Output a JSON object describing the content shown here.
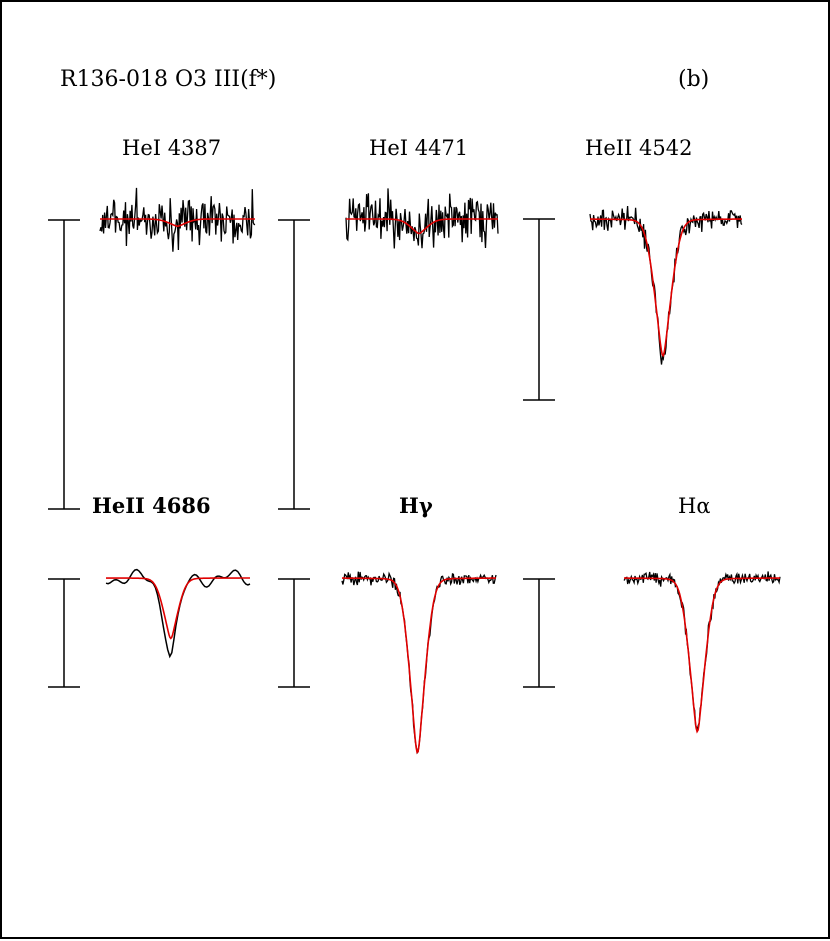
{
  "figure": {
    "star_label": "R136-018 O3 III(f*)",
    "panel_letter": "(b)"
  },
  "colors": {
    "observed": "#000000",
    "model": "#e00000",
    "frame": "#000000"
  },
  "chart_data": [
    {
      "type": "line",
      "title": "HeI 4387",
      "bold": false,
      "noise": "high",
      "smooth": false,
      "series": [
        {
          "role": "observed",
          "lines": [
            {
              "center": 0.5,
              "depth": 0.04,
              "width": 0.06
            }
          ]
        },
        {
          "role": "model",
          "lines": [
            {
              "center": 0.5,
              "depth": 0.04,
              "width": 0.06
            }
          ]
        }
      ]
    },
    {
      "type": "line",
      "title": "HeI 4471",
      "bold": false,
      "noise": "high",
      "smooth": false,
      "series": [
        {
          "role": "observed",
          "lines": [
            {
              "center": 0.48,
              "depth": 0.08,
              "width": 0.06
            }
          ]
        },
        {
          "role": "model",
          "lines": [
            {
              "center": 0.48,
              "depth": 0.08,
              "width": 0.06
            }
          ]
        }
      ]
    },
    {
      "type": "line",
      "title": "HeII 4542",
      "bold": false,
      "noise": "medium",
      "smooth": false,
      "series": [
        {
          "role": "observed",
          "lines": [
            {
              "center": 0.48,
              "depth": 0.78,
              "width": 0.06
            }
          ]
        },
        {
          "role": "model",
          "lines": [
            {
              "center": 0.48,
              "depth": 0.76,
              "width": 0.06
            }
          ]
        }
      ]
    },
    {
      "type": "line",
      "title": "HeII 4686",
      "bold": true,
      "noise": "smooth",
      "smooth": true,
      "series": [
        {
          "role": "observed",
          "lines": [
            {
              "center": 0.45,
              "depth": 0.72,
              "width": 0.055
            }
          ]
        },
        {
          "role": "model",
          "lines": [
            {
              "center": 0.45,
              "depth": 0.57,
              "width": 0.055
            }
          ]
        }
      ]
    },
    {
      "type": "line",
      "title": "Hγ",
      "bold": true,
      "noise": "medium",
      "smooth": false,
      "series": [
        {
          "role": "observed",
          "lines": [
            {
              "center": 0.49,
              "depth": 1.65,
              "width": 0.055
            }
          ]
        },
        {
          "role": "model",
          "lines": [
            {
              "center": 0.49,
              "depth": 1.65,
              "width": 0.055
            }
          ]
        }
      ]
    },
    {
      "type": "line",
      "title": "Hα",
      "bold": false,
      "noise": "medium",
      "smooth": false,
      "series": [
        {
          "role": "observed",
          "lines": [
            {
              "center": 0.47,
              "depth": 1.45,
              "width": 0.055
            }
          ]
        },
        {
          "role": "model",
          "lines": [
            {
              "center": 0.47,
              "depth": 1.45,
              "width": 0.055
            }
          ]
        }
      ]
    }
  ]
}
